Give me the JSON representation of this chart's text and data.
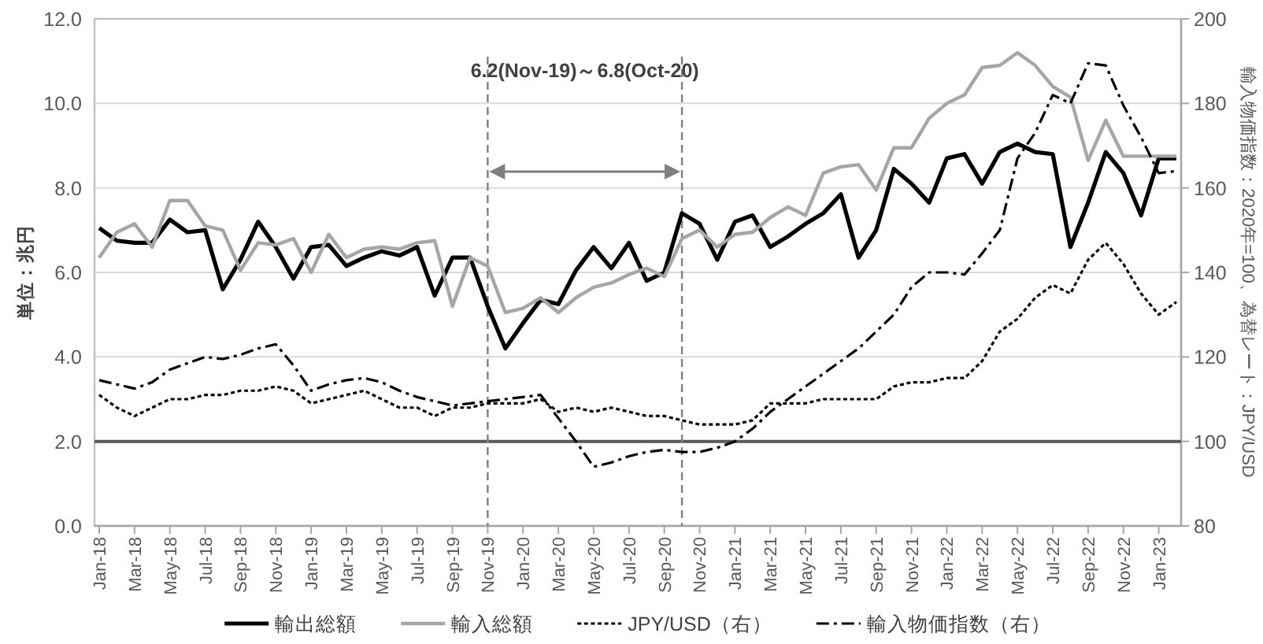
{
  "chart_data": {
    "type": "line",
    "ylabel": "単位：兆円",
    "y2label": "輸入物価指数：2020年=100、為替レート：JPY/USD",
    "annotations": [
      "6.2(Nov-19)～6.8(Oct-20)"
    ],
    "x": [
      "2018-01",
      "2018-02",
      "2018-03",
      "2018-04",
      "2018-05",
      "2018-06",
      "2018-07",
      "2018-08",
      "2018-09",
      "2018-10",
      "2018-11",
      "2018-12",
      "2019-01",
      "2019-02",
      "2019-03",
      "2019-04",
      "2019-05",
      "2019-06",
      "2019-07",
      "2019-08",
      "2019-09",
      "2019-10",
      "2019-11",
      "2019-12",
      "2020-01",
      "2020-02",
      "2020-03",
      "2020-04",
      "2020-05",
      "2020-06",
      "2020-07",
      "2020-08",
      "2020-09",
      "2020-10",
      "2020-11",
      "2020-12",
      "2021-01",
      "2021-02",
      "2021-03",
      "2021-04",
      "2021-05",
      "2021-06",
      "2021-07",
      "2021-08",
      "2021-09",
      "2021-10",
      "2021-11",
      "2021-12",
      "2022-01",
      "2022-02",
      "2022-03",
      "2022-04",
      "2022-05",
      "2022-06",
      "2022-07",
      "2022-08",
      "2022-09",
      "2022-10",
      "2022-11",
      "2022-12",
      "2023-01",
      "2023-02"
    ],
    "xlim": [
      "2018-01",
      "2023-02"
    ],
    "xticks": [
      {
        "value": "2018-01",
        "label": "Jan-18"
      },
      {
        "value": "2018-03",
        "label": "Mar-18"
      },
      {
        "value": "2018-05",
        "label": "May-18"
      },
      {
        "value": "2018-07",
        "label": "Jul-18"
      },
      {
        "value": "2018-09",
        "label": "Sep-18"
      },
      {
        "value": "2018-11",
        "label": "Nov-18"
      },
      {
        "value": "2019-01",
        "label": "Jan-19"
      },
      {
        "value": "2019-03",
        "label": "Mar-19"
      },
      {
        "value": "2019-05",
        "label": "May-19"
      },
      {
        "value": "2019-07",
        "label": "Jul-19"
      },
      {
        "value": "2019-09",
        "label": "Sep-19"
      },
      {
        "value": "2019-11",
        "label": "Nov-19"
      },
      {
        "value": "2020-01",
        "label": "Jan-20"
      },
      {
        "value": "2020-03",
        "label": "Mar-20"
      },
      {
        "value": "2020-05",
        "label": "May-20"
      },
      {
        "value": "2020-07",
        "label": "Jul-20"
      },
      {
        "value": "2020-09",
        "label": "Sep-20"
      },
      {
        "value": "2020-11",
        "label": "Nov-20"
      },
      {
        "value": "2021-01",
        "label": "Jan-21"
      },
      {
        "value": "2021-03",
        "label": "Mar-21"
      },
      {
        "value": "2021-05",
        "label": "May-21"
      },
      {
        "value": "2021-07",
        "label": "Jul-21"
      },
      {
        "value": "2021-09",
        "label": "Sep-21"
      },
      {
        "value": "2021-11",
        "label": "Nov-21"
      },
      {
        "value": "2022-01",
        "label": "Jan-22"
      },
      {
        "value": "2022-03",
        "label": "Mar-22"
      },
      {
        "value": "2022-05",
        "label": "May-22"
      },
      {
        "value": "2022-07",
        "label": "Jul-22"
      },
      {
        "value": "2022-09",
        "label": "Sep-22"
      },
      {
        "value": "2022-11",
        "label": "Nov-22"
      },
      {
        "value": "2023-01",
        "label": "Jan-23"
      }
    ],
    "ylim": [
      0,
      12
    ],
    "yticks": [
      {
        "value": 0,
        "label": "0.0"
      },
      {
        "value": 2,
        "label": "2.0"
      },
      {
        "value": 4,
        "label": "4.0"
      },
      {
        "value": 6,
        "label": "6.0"
      },
      {
        "value": 8,
        "label": "8.0"
      },
      {
        "value": 10,
        "label": "10.0"
      },
      {
        "value": 12,
        "label": "12.0"
      }
    ],
    "y2lim": [
      80,
      200
    ],
    "y2ticks": [
      80,
      100,
      120,
      140,
      160,
      180,
      200
    ],
    "grid": "y",
    "legend": "bottom",
    "ref_lines": [
      {
        "axis": "y",
        "value": 2,
        "color": "#595959",
        "line_style": "solid"
      },
      {
        "axis": "x",
        "value": "2019-11",
        "color": "#7f7f7f",
        "line_style": "dashed"
      },
      {
        "axis": "x",
        "value": "2020-10",
        "color": "#7f7f7f",
        "line_style": "dashed"
      }
    ],
    "series": [
      {
        "name": "輸出総額",
        "color": "#000000",
        "line_style": "solid",
        "values": [
          7.05,
          6.75,
          6.7,
          6.7,
          7.25,
          6.95,
          7.0,
          5.6,
          6.3,
          7.2,
          6.6,
          5.85,
          6.6,
          6.65,
          6.15,
          6.35,
          6.5,
          6.4,
          6.6,
          5.45,
          6.35,
          6.35,
          5.2,
          4.2,
          4.8,
          5.35,
          5.25,
          6.05,
          6.6,
          6.1,
          6.7,
          5.8,
          6.0,
          7.4,
          7.15,
          6.3,
          7.2,
          7.35,
          6.6,
          6.85,
          7.15,
          7.4,
          7.85,
          6.35,
          7.0,
          8.45,
          8.1,
          7.65,
          8.7,
          8.8,
          8.1,
          8.85,
          9.05,
          8.85,
          8.8,
          6.6,
          7.65,
          8.85,
          8.35,
          7.35,
          8.7,
          8.7
        ]
      },
      {
        "name": "輸入総額",
        "color": "#a6a6a6",
        "line_style": "solid",
        "values": [
          6.35,
          6.95,
          7.15,
          6.6,
          7.7,
          7.7,
          7.1,
          7.0,
          6.05,
          6.7,
          6.65,
          6.8,
          6.0,
          6.9,
          6.35,
          6.55,
          6.6,
          6.55,
          6.7,
          6.75,
          5.2,
          6.35,
          6.15,
          5.05,
          5.15,
          5.4,
          5.05,
          5.4,
          5.65,
          5.75,
          5.95,
          6.1,
          5.9,
          6.8,
          7.0,
          6.6,
          6.9,
          6.95,
          7.3,
          7.55,
          7.35,
          8.35,
          8.5,
          8.55,
          7.95,
          8.95,
          8.95,
          9.65,
          10.0,
          10.2,
          10.85,
          10.9,
          11.2,
          10.9,
          10.4,
          10.15,
          8.65,
          9.6,
          8.75,
          8.75,
          8.75,
          8.75
        ]
      },
      {
        "name": "JPY/USD（右）",
        "color": "#000000",
        "line_style": "dotted",
        "axis": "y2",
        "values": [
          111,
          108,
          106,
          108,
          110,
          110,
          111,
          111,
          112,
          112,
          113,
          112,
          109,
          110,
          111,
          112,
          110,
          108,
          108,
          106,
          108,
          108,
          109,
          109,
          109,
          110,
          107,
          108,
          107,
          108,
          107,
          106,
          106,
          105,
          104,
          104,
          104,
          105,
          109,
          109,
          109,
          110,
          110,
          110,
          110,
          113,
          114,
          114,
          115,
          115,
          119,
          126,
          129,
          134,
          137,
          135,
          143,
          147,
          142,
          135,
          130,
          133
        ]
      },
      {
        "name": "輸入物価指数（右）",
        "color": "#000000",
        "line_style": "dashdot",
        "axis": "y2",
        "values": [
          114.5,
          113.5,
          112.5,
          114,
          117,
          118.5,
          120,
          119.5,
          120.5,
          122,
          123,
          118,
          112,
          113.5,
          114.5,
          115,
          114,
          112,
          110.5,
          109.5,
          108.5,
          109,
          109.5,
          110,
          110.5,
          111,
          105.5,
          100,
          94,
          95,
          96.5,
          97.5,
          98,
          97.5,
          97.5,
          98.5,
          100,
          103,
          107,
          110,
          113,
          116,
          119,
          122,
          126,
          130,
          136.5,
          140,
          140,
          139.5,
          144.5,
          150,
          167,
          173,
          182,
          180,
          189.5,
          189,
          179.5,
          172,
          163.5,
          164
        ]
      }
    ]
  }
}
